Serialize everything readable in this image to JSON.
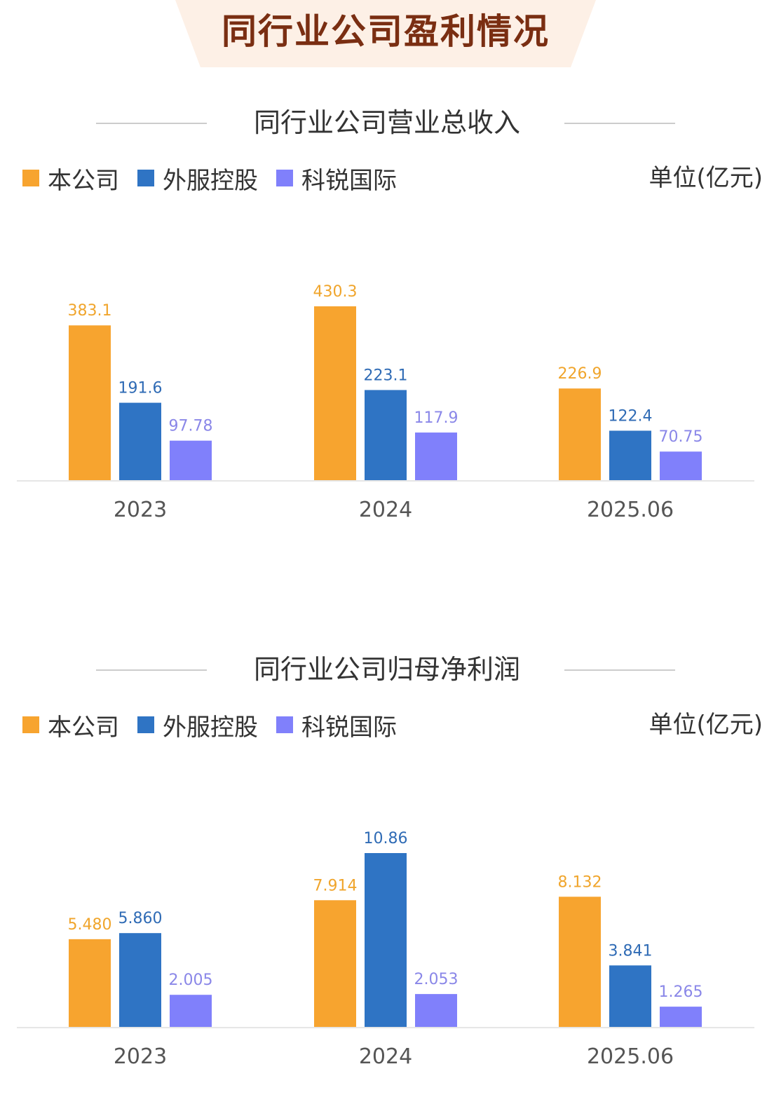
{
  "header": {
    "title": "同行业公司盈利情况"
  },
  "unit_label": "单位(亿元)",
  "colors": {
    "series": [
      "#f7a42f",
      "#2f74c4",
      "#8080fb"
    ],
    "labels": [
      "#f0a52c",
      "#2f6bb5",
      "#8a87e8"
    ]
  },
  "chart_data": [
    {
      "type": "bar",
      "title": "同行业公司营业总收入",
      "unit": "单位(亿元)",
      "categories": [
        "2023",
        "2024",
        "2025.06"
      ],
      "series": [
        {
          "name": "本公司",
          "values": [
            383.1,
            430.3,
            226.9
          ],
          "labels": [
            "383.1",
            "430.3",
            "226.9"
          ]
        },
        {
          "name": "外服控股",
          "values": [
            191.6,
            223.1,
            122.4
          ],
          "labels": [
            "191.6",
            "223.1",
            "122.4"
          ]
        },
        {
          "name": "科锐国际",
          "values": [
            97.78,
            117.9,
            70.75
          ],
          "labels": [
            "97.78",
            "117.9",
            "70.75"
          ]
        }
      ],
      "ylim": [
        0,
        430.3
      ],
      "legend": "top-left",
      "grid": false
    },
    {
      "type": "bar",
      "title": "同行业公司归母净利润",
      "unit": "单位(亿元)",
      "categories": [
        "2023",
        "2024",
        "2025.06"
      ],
      "series": [
        {
          "name": "本公司",
          "values": [
            5.48,
            7.914,
            8.132
          ],
          "labels": [
            "5.480",
            "7.914",
            "8.132"
          ]
        },
        {
          "name": "外服控股",
          "values": [
            5.86,
            10.86,
            3.841
          ],
          "labels": [
            "5.860",
            "10.86",
            "3.841"
          ]
        },
        {
          "name": "科锐国际",
          "values": [
            2.005,
            2.053,
            1.265
          ],
          "labels": [
            "2.005",
            "2.053",
            "1.265"
          ]
        }
      ],
      "ylim": [
        0,
        10.86
      ],
      "legend": "top-left",
      "grid": false
    }
  ]
}
